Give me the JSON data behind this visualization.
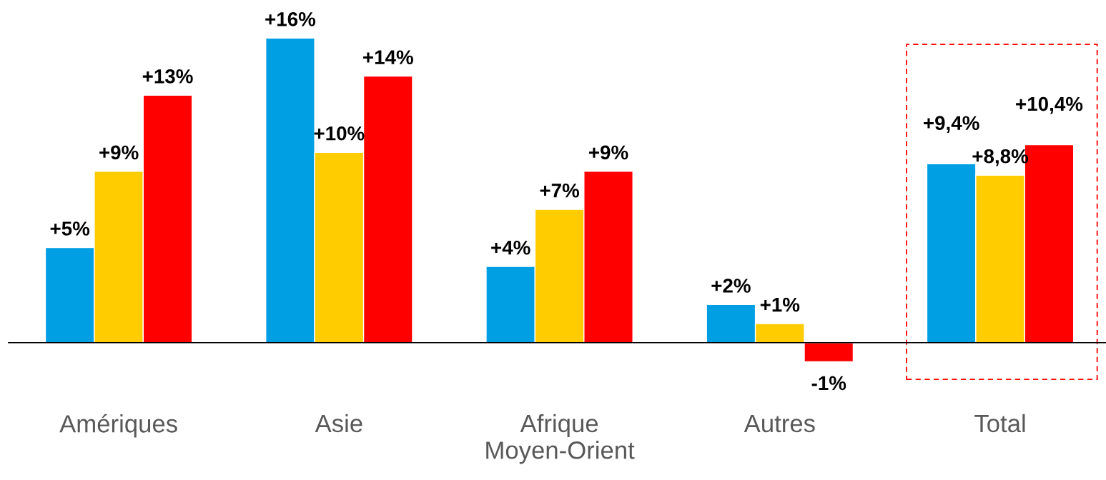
{
  "chart_data": {
    "type": "bar",
    "categories": [
      "Amériques",
      "Asie",
      "Afrique\nMoyen-Orient",
      "Autres",
      "Total"
    ],
    "series": [
      {
        "color": "#009fe3",
        "values": [
          5,
          16,
          4,
          2,
          9.4
        ],
        "value_labels": [
          "+5%",
          "+16%",
          "+4%",
          "+2%",
          "+9,4%"
        ]
      },
      {
        "color": "#ffcc00",
        "values": [
          9,
          10,
          7,
          1,
          8.8
        ],
        "value_labels": [
          "+9%",
          "+10%",
          "+7%",
          "+1%",
          "+8,8%"
        ]
      },
      {
        "color": "#ff0000",
        "values": [
          13,
          14,
          9,
          -1,
          10.4
        ],
        "value_labels": [
          "+13%",
          "+14%",
          "+9%",
          "-1%",
          "+10,4%"
        ]
      }
    ],
    "grid": false,
    "legend": false
  }
}
